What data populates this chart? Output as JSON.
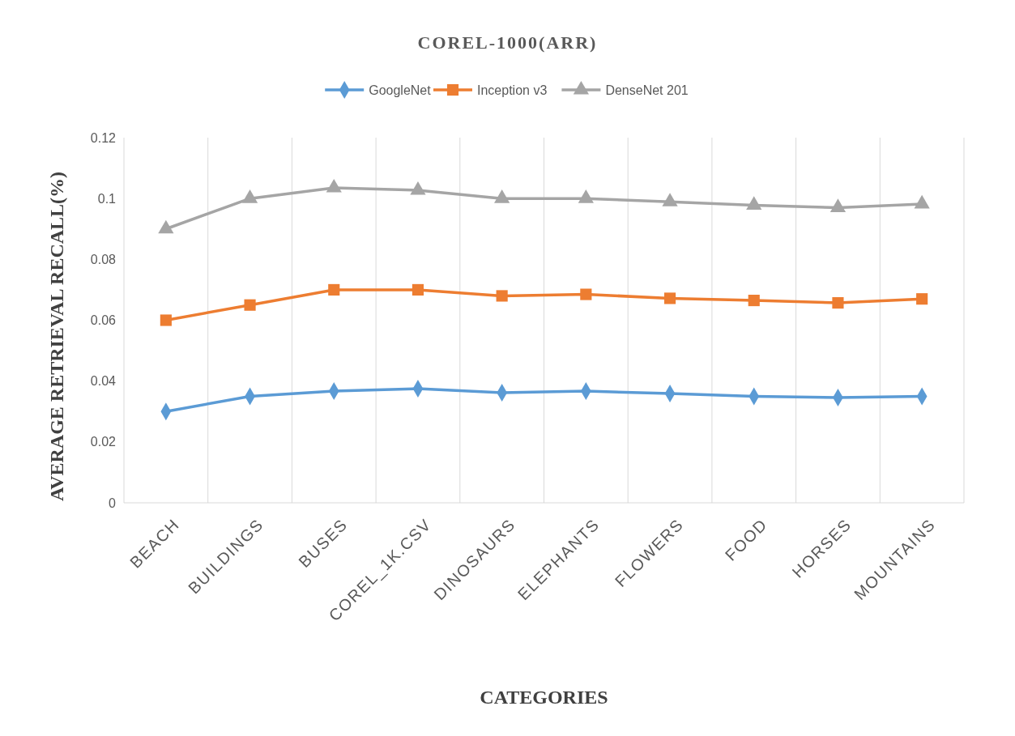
{
  "chart_data": {
    "type": "line",
    "title": "COREL-1000(ARR)",
    "xlabel": "CATEGORIES",
    "ylabel": "AVERAGE RETRIEVAL RECALL(%)",
    "categories": [
      "BEACH",
      "BUILDINGS",
      "BUSES",
      "COREL_1K.CSV",
      "DINOSAURS",
      "ELEPHANTS",
      "FLOWERS",
      "FOOD",
      "HORSES",
      "MOUNTAINS"
    ],
    "series": [
      {
        "name": "GoogleNet",
        "color": "#5b9bd5",
        "marker": "diamond",
        "values": [
          0.03,
          0.035,
          0.0367,
          0.0375,
          0.0362,
          0.0367,
          0.0359,
          0.035,
          0.0346,
          0.035
        ]
      },
      {
        "name": "Inception v3",
        "color": "#ed7d31",
        "marker": "square",
        "values": [
          0.06,
          0.065,
          0.07,
          0.07,
          0.068,
          0.0685,
          0.0672,
          0.0665,
          0.0657,
          0.067
        ]
      },
      {
        "name": "DenseNet 201",
        "color": "#a5a5a5",
        "marker": "triangle",
        "values": [
          0.09,
          0.1,
          0.1035,
          0.1027,
          0.1,
          0.1,
          0.0989,
          0.0978,
          0.097,
          0.0982
        ]
      }
    ],
    "ylim": [
      0,
      0.12
    ],
    "yticks": [
      0,
      0.02,
      0.04,
      0.06,
      0.08,
      0.1,
      0.12
    ],
    "grid": "x",
    "legend": "top",
    "line_style": "solid"
  }
}
